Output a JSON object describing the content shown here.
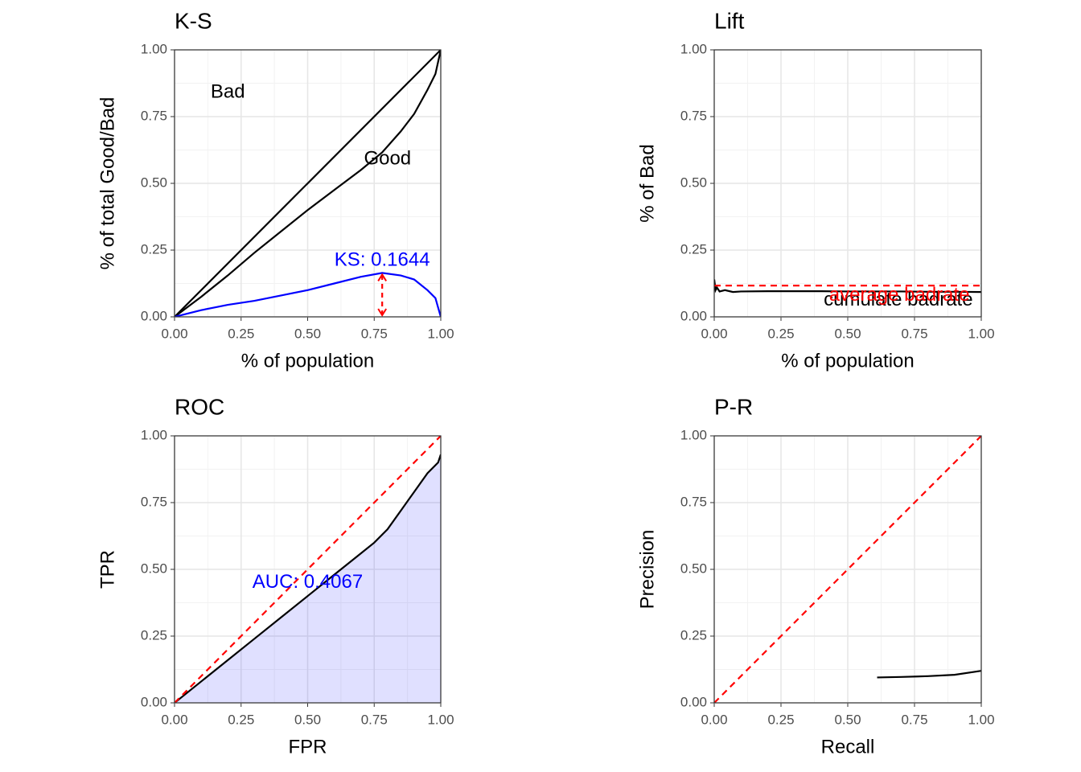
{
  "chart_data": [
    {
      "type": "line",
      "title": "K-S",
      "xlabel": "% of population",
      "ylabel": "% of total Good/Bad",
      "xlim": [
        0,
        1
      ],
      "ylim": [
        0,
        1
      ],
      "xticks": [
        {
          "value": 0,
          "label": "0.00"
        },
        {
          "value": 0.25,
          "label": "0.25"
        },
        {
          "value": 0.5,
          "label": "0.50"
        },
        {
          "value": 0.75,
          "label": "0.75"
        },
        {
          "value": 1,
          "label": "1.00"
        }
      ],
      "yticks": [
        {
          "value": 0,
          "label": "0.00"
        },
        {
          "value": 0.25,
          "label": "0.25"
        },
        {
          "value": 0.5,
          "label": "0.50"
        },
        {
          "value": 0.75,
          "label": "0.75"
        },
        {
          "value": 1,
          "label": "1.00"
        }
      ],
      "minor_ticks": [
        0.125,
        0.375,
        0.625,
        0.875
      ],
      "grid": true,
      "series": [
        {
          "name": "Bad",
          "color": "#000000",
          "linestyle": "solid",
          "x": [
            0,
            1
          ],
          "values": [
            0,
            1
          ]
        },
        {
          "name": "Good",
          "color": "#000000",
          "linestyle": "solid",
          "x": [
            0,
            0.1,
            0.2,
            0.3,
            0.4,
            0.5,
            0.6,
            0.7,
            0.78,
            0.85,
            0.9,
            0.95,
            0.98,
            1
          ],
          "values": [
            0,
            0.075,
            0.155,
            0.24,
            0.32,
            0.4,
            0.475,
            0.55,
            0.616,
            0.695,
            0.76,
            0.85,
            0.91,
            1
          ]
        },
        {
          "color": "#0000ff",
          "linestyle": "solid",
          "x": [
            0,
            0.1,
            0.2,
            0.3,
            0.4,
            0.5,
            0.6,
            0.7,
            0.78,
            0.85,
            0.9,
            0.95,
            0.98,
            1
          ],
          "values": [
            0,
            0.025,
            0.045,
            0.06,
            0.08,
            0.1,
            0.125,
            0.15,
            0.1644,
            0.155,
            0.14,
            0.1,
            0.07,
            0
          ],
          "ks_arrow": true
        }
      ],
      "annotations": [
        {
          "text": "KS: 0.1644",
          "color": "#0000ff"
        }
      ]
    },
    {
      "type": "line",
      "title": "Lift",
      "xlabel": "% of population",
      "ylabel": "% of Bad",
      "xlim": [
        0,
        1
      ],
      "ylim": [
        0,
        1
      ],
      "xticks": [
        {
          "value": 0,
          "label": "0.00"
        },
        {
          "value": 0.25,
          "label": "0.25"
        },
        {
          "value": 0.5,
          "label": "0.50"
        },
        {
          "value": 0.75,
          "label": "0.75"
        },
        {
          "value": 1,
          "label": "1.00"
        }
      ],
      "yticks": [
        {
          "value": 0,
          "label": "0.00"
        },
        {
          "value": 0.25,
          "label": "0.25"
        },
        {
          "value": 0.5,
          "label": "0.50"
        },
        {
          "value": 0.75,
          "label": "0.75"
        },
        {
          "value": 1,
          "label": "1.00"
        }
      ],
      "minor_ticks": [
        0.125,
        0.375,
        0.625,
        0.875
      ],
      "grid": true,
      "series": [
        {
          "name": "cumulate badrate",
          "color": "#000000",
          "linestyle": "solid",
          "x": [
            0,
            0.005,
            0.01,
            0.02,
            0.04,
            0.07,
            0.1,
            0.2,
            0.3,
            0.4,
            0.5,
            0.6,
            0.7,
            0.8,
            0.9,
            1
          ],
          "values": [
            0.14,
            0.1,
            0.11,
            0.095,
            0.1,
            0.093,
            0.095,
            0.096,
            0.096,
            0.096,
            0.095,
            0.095,
            0.095,
            0.094,
            0.094,
            0.093
          ]
        },
        {
          "name": "average badrate",
          "color": "#ff0000",
          "linestyle": "dashed",
          "x": [
            0,
            1
          ],
          "values": [
            0.117,
            0.117
          ]
        }
      ],
      "annotations": []
    },
    {
      "type": "line",
      "title": "ROC",
      "xlabel": "FPR",
      "ylabel": "TPR",
      "xlim": [
        0,
        1
      ],
      "ylim": [
        0,
        1
      ],
      "xticks": [
        {
          "value": 0,
          "label": "0.00"
        },
        {
          "value": 0.25,
          "label": "0.25"
        },
        {
          "value": 0.5,
          "label": "0.50"
        },
        {
          "value": 0.75,
          "label": "0.75"
        },
        {
          "value": 1,
          "label": "1.00"
        }
      ],
      "yticks": [
        {
          "value": 0,
          "label": "0.00"
        },
        {
          "value": 0.25,
          "label": "0.25"
        },
        {
          "value": 0.5,
          "label": "0.50"
        },
        {
          "value": 0.75,
          "label": "0.75"
        },
        {
          "value": 1,
          "label": "1.00"
        }
      ],
      "minor_ticks": [
        0.125,
        0.375,
        0.625,
        0.875
      ],
      "grid": true,
      "series": [
        {
          "color": "#000000",
          "linestyle": "solid",
          "fill": "#0000ff",
          "x": [
            0,
            0.1,
            0.2,
            0.3,
            0.4,
            0.5,
            0.6,
            0.7,
            0.75,
            0.8,
            0.85,
            0.9,
            0.95,
            0.99,
            1
          ],
          "values": [
            0,
            0.08,
            0.16,
            0.24,
            0.32,
            0.4,
            0.48,
            0.56,
            0.6,
            0.65,
            0.72,
            0.79,
            0.86,
            0.9,
            0.93
          ]
        },
        {
          "color": "#ff0000",
          "linestyle": "dashed",
          "x": [
            0,
            1
          ],
          "values": [
            0,
            1
          ]
        }
      ],
      "annotations": [
        {
          "text": "AUC: 0.4067",
          "color": "#0000ff"
        }
      ]
    },
    {
      "type": "line",
      "title": "P-R",
      "xlabel": "Recall",
      "ylabel": "Precision",
      "xlim": [
        0,
        1
      ],
      "ylim": [
        0,
        1
      ],
      "xticks": [
        {
          "value": 0,
          "label": "0.00"
        },
        {
          "value": 0.25,
          "label": "0.25"
        },
        {
          "value": 0.5,
          "label": "0.50"
        },
        {
          "value": 0.75,
          "label": "0.75"
        },
        {
          "value": 1,
          "label": "1.00"
        }
      ],
      "yticks": [
        {
          "value": 0,
          "label": "0.00"
        },
        {
          "value": 0.25,
          "label": "0.25"
        },
        {
          "value": 0.5,
          "label": "0.50"
        },
        {
          "value": 0.75,
          "label": "0.75"
        },
        {
          "value": 1,
          "label": "1.00"
        }
      ],
      "minor_ticks": [
        0.125,
        0.375,
        0.625,
        0.875
      ],
      "grid": true,
      "series": [
        {
          "color": "#000000",
          "linestyle": "solid",
          "x": [
            0.61,
            0.7,
            0.8,
            0.9,
            1
          ],
          "values": [
            0.095,
            0.097,
            0.1,
            0.105,
            0.12
          ]
        },
        {
          "color": "#ff0000",
          "linestyle": "dashed",
          "x": [
            0,
            1
          ],
          "values": [
            0,
            1
          ]
        }
      ],
      "annotations": []
    }
  ]
}
